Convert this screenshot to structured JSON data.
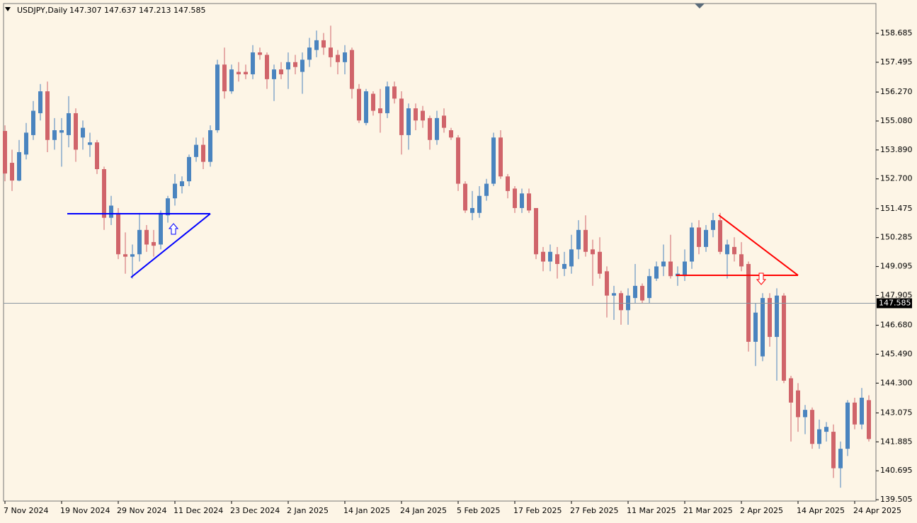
{
  "chart_data": {
    "type": "candlestick",
    "title": "USDJPY,Daily",
    "ohlc_label": "147.307 147.637 147.213 147.585",
    "categories": [
      "7 Nov 2024",
      null,
      null,
      null,
      null,
      null,
      null,
      null,
      "19 Nov 2024",
      null,
      null,
      null,
      null,
      null,
      null,
      null,
      "29 Nov 2024",
      null,
      null,
      null,
      null,
      null,
      null,
      null,
      "11 Dec 2024",
      null,
      null,
      null,
      null,
      null,
      null,
      null,
      "23 Dec 2024",
      null,
      null,
      null,
      null,
      null,
      null,
      null,
      "2 Jan 2025",
      null,
      null,
      null,
      null,
      null,
      null,
      null,
      "14 Jan 2025",
      null,
      null,
      null,
      null,
      null,
      null,
      null,
      "24 Jan 2025",
      null,
      null,
      null,
      null,
      null,
      null,
      null,
      "5 Feb 2025",
      null,
      null,
      null,
      null,
      null,
      null,
      null,
      "17 Feb 2025",
      null,
      null,
      null,
      null,
      null,
      null,
      null,
      "27 Feb 2025",
      null,
      null,
      null,
      null,
      null,
      null,
      null,
      "11 Mar 2025",
      null,
      null,
      null,
      null,
      null,
      null,
      null,
      "21 Mar 2025",
      null,
      null,
      null,
      null,
      null,
      null,
      null,
      "2 Apr 2025",
      null,
      null,
      null,
      null,
      null,
      null,
      null,
      "14 Apr 2025",
      null,
      null,
      null,
      null,
      null,
      null,
      null,
      "24 Apr 2025",
      null,
      null
    ],
    "open": [
      154.67,
      153.36,
      152.63,
      153.7,
      154.5,
      155.4,
      156.3,
      154.3,
      154.6,
      154.5,
      155.4,
      154.4,
      154.1,
      154.2,
      153.1,
      151.1,
      151.3,
      149.6,
      149.5,
      149.6,
      150.6,
      150.1,
      150.0,
      151.2,
      151.9,
      152.4,
      152.6,
      153.6,
      154.1,
      153.4,
      154.7,
      157.4,
      156.3,
      157.1,
      157.1,
      157.0,
      157.9,
      157.8,
      156.8,
      157.2,
      157.2,
      157.5,
      157.1,
      157.6,
      158.0,
      158.4,
      158.1,
      157.8,
      157.5,
      158.0,
      156.4,
      155.0,
      156.2,
      155.6,
      155.4,
      156.5,
      156.0,
      154.5,
      155.6,
      155.5,
      155.2,
      154.3,
      155.3,
      154.7,
      154.4,
      152.5,
      151.3,
      151.3,
      152.0,
      152.5,
      154.4,
      152.8,
      152.3,
      151.5,
      152.1,
      151.5,
      149.7,
      149.3,
      149.6,
      149.0,
      149.1,
      149.8,
      150.6,
      149.8,
      149.7,
      148.9,
      147.9,
      148.0,
      147.3,
      147.8,
      148.3,
      147.8,
      148.6,
      149.1,
      149.3,
      148.7,
      148.7,
      149.3,
      150.7,
      149.9,
      150.6,
      151.0,
      149.6,
      149.9,
      149.6,
      149.2,
      146.0,
      145.4,
      147.8,
      146.2,
      147.9,
      144.5,
      144.0,
      142.9,
      143.2,
      141.8,
      142.3,
      142.3,
      140.8,
      141.6,
      143.5,
      142.6,
      143.6
    ],
    "high": [
      154.9,
      153.9,
      154.3,
      155.0,
      155.9,
      156.6,
      156.7,
      155.2,
      155.2,
      156.1,
      155.6,
      155.1,
      154.6,
      154.3,
      153.2,
      152.0,
      151.5,
      150.5,
      150.0,
      151.3,
      150.8,
      150.6,
      151.4,
      152.0,
      152.9,
      152.8,
      153.7,
      154.4,
      154.4,
      154.9,
      157.6,
      158.1,
      157.4,
      157.5,
      157.4,
      158.2,
      158.1,
      157.9,
      157.4,
      157.5,
      157.9,
      157.8,
      157.9,
      158.5,
      158.8,
      158.7,
      159.0,
      158.0,
      158.2,
      158.1,
      156.6,
      156.4,
      156.3,
      156.4,
      156.7,
      156.7,
      156.3,
      155.8,
      155.8,
      155.7,
      155.3,
      155.5,
      155.6,
      154.8,
      154.5,
      152.6,
      152.2,
      152.4,
      152.7,
      154.6,
      154.7,
      152.9,
      152.4,
      152.3,
      152.3,
      151.5,
      149.9,
      150.0,
      149.9,
      149.7,
      150.4,
      151.0,
      151.2,
      150.2,
      150.3,
      149.1,
      148.3,
      148.1,
      148.2,
      149.2,
      148.4,
      149.0,
      149.3,
      150.0,
      150.4,
      149.1,
      149.8,
      150.9,
      151.0,
      150.8,
      151.3,
      151.3,
      150.2,
      150.3,
      150.1,
      149.3,
      147.6,
      148.0,
      148.0,
      148.2,
      148.0,
      144.6,
      144.3,
      143.4,
      143.3,
      142.8,
      142.7,
      142.6,
      141.9,
      143.6,
      143.7,
      144.1,
      143.8
    ],
    "low": [
      152.6,
      152.2,
      152.6,
      153.5,
      154.3,
      155.1,
      153.8,
      153.9,
      153.2,
      154.0,
      153.4,
      153.9,
      153.6,
      152.9,
      150.6,
      150.8,
      149.4,
      148.8,
      148.6,
      149.3,
      149.7,
      149.5,
      149.8,
      150.9,
      151.6,
      152.1,
      152.4,
      153.4,
      153.1,
      153.2,
      154.6,
      156.0,
      156.2,
      156.7,
      156.8,
      156.8,
      157.6,
      156.4,
      155.9,
      156.8,
      156.4,
      157.0,
      156.2,
      157.3,
      157.7,
      157.8,
      157.3,
      157.0,
      157.0,
      156.0,
      155.0,
      154.9,
      155.3,
      154.6,
      155.2,
      155.8,
      153.7,
      153.9,
      154.7,
      154.8,
      153.9,
      154.1,
      154.6,
      154.3,
      152.2,
      151.3,
      151.0,
      151.1,
      151.8,
      152.4,
      152.7,
      151.9,
      151.3,
      151.3,
      151.3,
      149.4,
      148.9,
      148.9,
      148.6,
      148.7,
      148.8,
      149.4,
      149.5,
      148.3,
      148.6,
      147.0,
      146.9,
      146.7,
      146.7,
      147.6,
      147.6,
      147.6,
      148.5,
      148.7,
      148.6,
      148.3,
      148.5,
      149.0,
      149.6,
      149.7,
      150.3,
      149.6,
      148.6,
      149.3,
      148.9,
      145.6,
      145.0,
      145.2,
      145.8,
      144.4,
      144.3,
      141.9,
      142.3,
      142.2,
      141.6,
      141.6,
      141.9,
      140.4,
      140.0,
      141.3,
      142.4,
      142.4,
      141.9
    ],
    "close": [
      152.92,
      152.63,
      153.8,
      154.6,
      155.5,
      156.3,
      154.3,
      154.7,
      154.7,
      155.4,
      153.9,
      154.8,
      154.2,
      153.1,
      151.1,
      151.6,
      149.6,
      149.5,
      149.6,
      150.6,
      150.0,
      149.95,
      151.3,
      151.9,
      152.5,
      152.6,
      153.6,
      154.1,
      153.4,
      154.7,
      157.4,
      156.3,
      157.2,
      157.0,
      157.0,
      157.9,
      157.8,
      156.8,
      157.2,
      157.0,
      157.5,
      157.3,
      157.6,
      158.1,
      158.4,
      158.1,
      157.7,
      157.5,
      157.9,
      156.4,
      155.1,
      156.3,
      155.5,
      155.4,
      156.5,
      156.0,
      154.5,
      155.6,
      155.1,
      155.1,
      154.3,
      155.2,
      154.8,
      154.4,
      152.5,
      151.4,
      151.5,
      152.0,
      152.5,
      154.4,
      152.8,
      152.2,
      151.5,
      152.1,
      151.4,
      149.6,
      149.3,
      149.7,
      149.2,
      149.2,
      149.8,
      150.6,
      149.7,
      149.6,
      148.8,
      147.9,
      148.0,
      147.3,
      147.9,
      148.3,
      147.7,
      148.7,
      149.1,
      149.3,
      148.7,
      148.8,
      149.3,
      150.7,
      149.9,
      150.6,
      151.0,
      149.7,
      150.0,
      149.6,
      149.1,
      146.0,
      147.2,
      147.8,
      146.2,
      147.9,
      144.4,
      143.5,
      142.9,
      143.2,
      141.8,
      142.4,
      142.5,
      140.8,
      141.6,
      143.5,
      142.6,
      143.7,
      142.0
    ],
    "bull_color": "#4a84bf",
    "bear_color": "#d0646a",
    "price_line": 147.585,
    "ylim": [
      139.45,
      159.91
    ],
    "yticks": [
      158.685,
      157.495,
      {
        "value": 156.27,
        "label": "156.270"
      },
      {
        "value": 155.08,
        "label": "155.080"
      },
      {
        "value": 153.89,
        "label": "153.890"
      },
      {
        "value": 152.7,
        "label": "152.700"
      },
      151.475,
      150.285,
      149.095,
      147.905,
      {
        "value": 146.68,
        "label": "146.680"
      },
      {
        "value": 145.49,
        "label": "145.490"
      },
      {
        "value": 144.3,
        "label": "144.300"
      },
      143.075,
      141.885,
      140.695,
      139.505
    ]
  }
}
